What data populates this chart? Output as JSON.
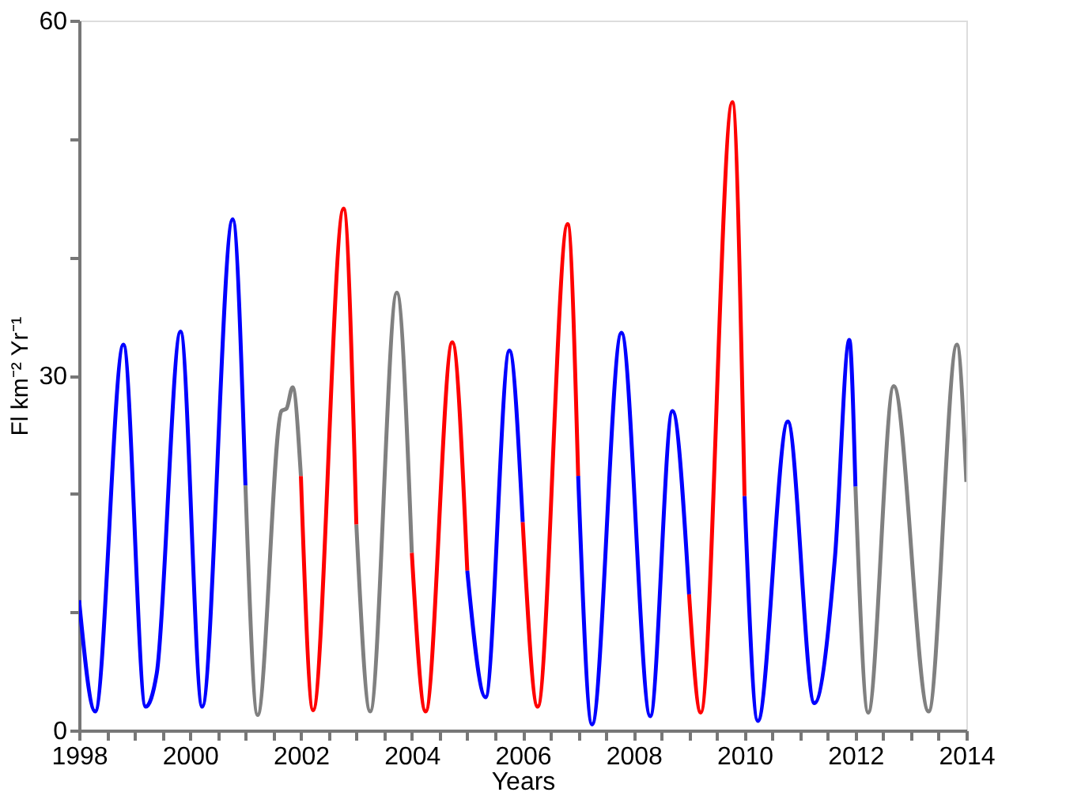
{
  "chart_data": {
    "type": "line",
    "xlabel": "Years",
    "ylabel": "Fl km⁻² Yr⁻¹",
    "xlim": [
      1998,
      2014
    ],
    "ylim": [
      0,
      60
    ],
    "xticks": [
      1998,
      {
        "value": 1998.5,
        "label": null
      },
      {
        "value": 1999,
        "label": null
      },
      {
        "value": 1999.5,
        "label": null
      },
      2000,
      {
        "value": 2000.5,
        "label": null
      },
      {
        "value": 2001,
        "label": null
      },
      {
        "value": 2001.5,
        "label": null
      },
      2002,
      {
        "value": 2002.5,
        "label": null
      },
      {
        "value": 2003,
        "label": null
      },
      {
        "value": 2003.5,
        "label": null
      },
      2004,
      {
        "value": 2004.5,
        "label": null
      },
      {
        "value": 2005,
        "label": null
      },
      {
        "value": 2005.5,
        "label": null
      },
      2006,
      {
        "value": 2006.5,
        "label": null
      },
      {
        "value": 2007,
        "label": null
      },
      {
        "value": 2007.5,
        "label": null
      },
      2008,
      {
        "value": 2008.5,
        "label": null
      },
      {
        "value": 2009,
        "label": null
      },
      {
        "value": 2009.5,
        "label": null
      },
      2010,
      {
        "value": 2010.5,
        "label": null
      },
      {
        "value": 2011,
        "label": null
      },
      {
        "value": 2011.5,
        "label": null
      },
      2012,
      {
        "value": 2012.5,
        "label": null
      },
      {
        "value": 2013,
        "label": null
      },
      {
        "value": 2013.5,
        "label": null
      },
      2014
    ],
    "yticks": [
      0,
      {
        "value": 10,
        "label": null
      },
      {
        "value": 20,
        "label": null
      },
      30,
      {
        "value": 40,
        "label": null
      },
      {
        "value": 50,
        "label": null
      },
      60
    ],
    "grid": false,
    "legend": false,
    "marker": "none",
    "line_style": "solid",
    "series": [
      {
        "color": "#0000ff",
        "x": [
          1998.0,
          1998.29,
          1998.8,
          1999.2,
          1999.4,
          1999.83,
          2000.22,
          2000.77,
          2001.0
        ],
        "values": [
          11.0,
          1.6,
          32.6,
          2.0,
          4.8,
          33.7,
          2.0,
          43.2,
          20.7
        ]
      },
      {
        "color": "#808080",
        "x": [
          2001.0,
          2001.22,
          2001.65,
          2001.74,
          2001.85,
          2002.0
        ],
        "values": [
          20.7,
          1.3,
          27.0,
          27.2,
          29.0,
          21.5
        ]
      },
      {
        "color": "#ff0000",
        "x": [
          2002.0,
          2002.22,
          2002.77,
          2003.0
        ],
        "values": [
          21.5,
          1.7,
          44.1,
          17.4
        ]
      },
      {
        "color": "#808080",
        "x": [
          2003.0,
          2003.25,
          2003.73,
          2004.0
        ],
        "values": [
          17.4,
          1.6,
          37.0,
          15.0
        ]
      },
      {
        "color": "#ff0000",
        "x": [
          2004.0,
          2004.25,
          2004.73,
          2005.0
        ],
        "values": [
          15.0,
          1.6,
          32.8,
          13.5
        ]
      },
      {
        "color": "#0000ff",
        "x": [
          2005.0,
          2005.33,
          2005.76,
          2006.0
        ],
        "values": [
          13.5,
          2.8,
          32.1,
          17.6
        ]
      },
      {
        "color": "#ff0000",
        "x": [
          2006.0,
          2006.27,
          2006.81,
          2007.0
        ],
        "values": [
          17.6,
          2.0,
          42.8,
          21.5
        ]
      },
      {
        "color": "#0000ff",
        "x": [
          2007.0,
          2007.25,
          2007.78,
          2008.3,
          2008.7,
          2009.0
        ],
        "values": [
          21.5,
          0.5,
          33.6,
          1.2,
          27.0,
          11.5
        ]
      },
      {
        "color": "#ff0000",
        "x": [
          2009.0,
          2009.21,
          2009.78,
          2010.0
        ],
        "values": [
          11.5,
          1.5,
          53.1,
          19.8
        ]
      },
      {
        "color": "#0000ff",
        "x": [
          2010.0,
          2010.24,
          2010.78,
          2011.26,
          2011.63,
          2011.89,
          2012.0
        ],
        "values": [
          19.8,
          0.8,
          26.1,
          2.3,
          14.6,
          33.0,
          20.6
        ]
      },
      {
        "color": "#808080",
        "x": [
          2012.0,
          2012.23,
          2012.69,
          2013.32,
          2013.83,
          2014.0
        ],
        "values": [
          20.6,
          1.5,
          29.1,
          1.6,
          32.6,
          21.0
        ]
      }
    ]
  }
}
